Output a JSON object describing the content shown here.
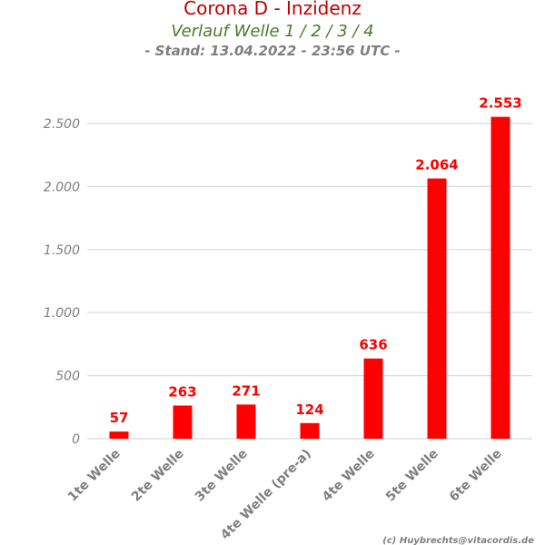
{
  "chart_data": {
    "type": "bar",
    "title": "Corona D - Inzidenz",
    "subtitle": "Verlauf Welle 1 / 2 / 3 / 4",
    "stand": "- Stand: 13.04.2022 - 23:56 UTC -",
    "categories": [
      "1te Welle",
      "2te Welle",
      "3te Welle",
      "4te Welle (pre-a)",
      "4te Welle",
      "5te Welle",
      "6te Welle"
    ],
    "values": [
      57,
      263,
      271,
      124,
      636,
      2064,
      2553
    ],
    "value_labels": [
      "57",
      "263",
      "271",
      "124",
      "636",
      "2.064",
      "2.553"
    ],
    "y_ticks": [
      0,
      500,
      1000,
      1500,
      2000,
      2500
    ],
    "y_tick_labels": [
      "0",
      "500",
      "1.000",
      "1.500",
      "2.000",
      "2.500"
    ],
    "ylim": [
      0,
      2500
    ],
    "grid": true,
    "bar_color": "#ff0000",
    "credit": "(c) Huybrechts@vitacordis.de"
  }
}
